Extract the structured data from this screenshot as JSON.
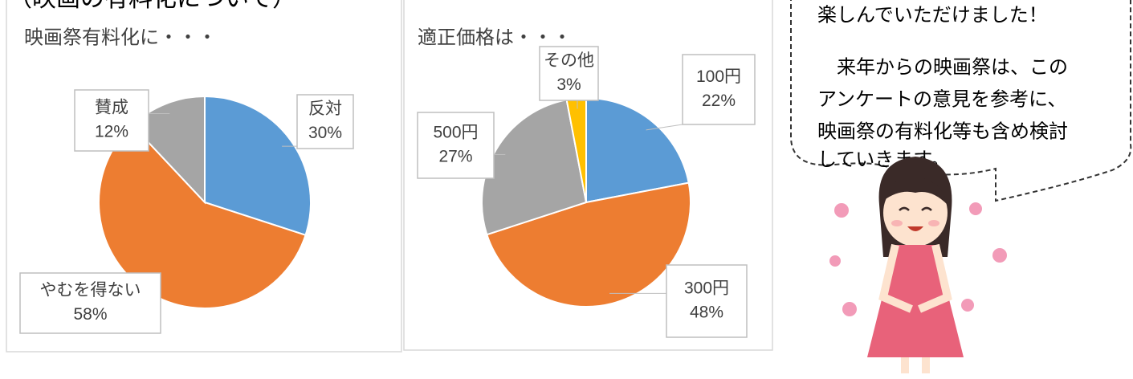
{
  "heading": "（映画の有料化について）",
  "chart_data": [
    {
      "type": "pie",
      "title": "映画祭有料化に・・・",
      "categories": [
        "反対",
        "やむを得ない",
        "賛成"
      ],
      "values": [
        30,
        58,
        12
      ],
      "value_labels": [
        "30%",
        "58%",
        "12%"
      ],
      "colors": [
        "#5b9bd5",
        "#ed7d31",
        "#a5a5a5"
      ]
    },
    {
      "type": "pie",
      "title": "適正価格は・・・",
      "categories": [
        "100円",
        "300円",
        "500円",
        "その他"
      ],
      "values": [
        22,
        48,
        27,
        3
      ],
      "value_labels": [
        "22%",
        "48%",
        "27%",
        "3%"
      ],
      "colors": [
        "#5b9bd5",
        "#ed7d31",
        "#a5a5a5",
        "#ffc000"
      ]
    }
  ],
  "bubble": {
    "lines": [
      "楽しんでいただけました！",
      "　来年からの映画祭は、この",
      "アンケートの意見を参考に、",
      "映画祭の有料化等も含め検討",
      "していきます。"
    ]
  }
}
